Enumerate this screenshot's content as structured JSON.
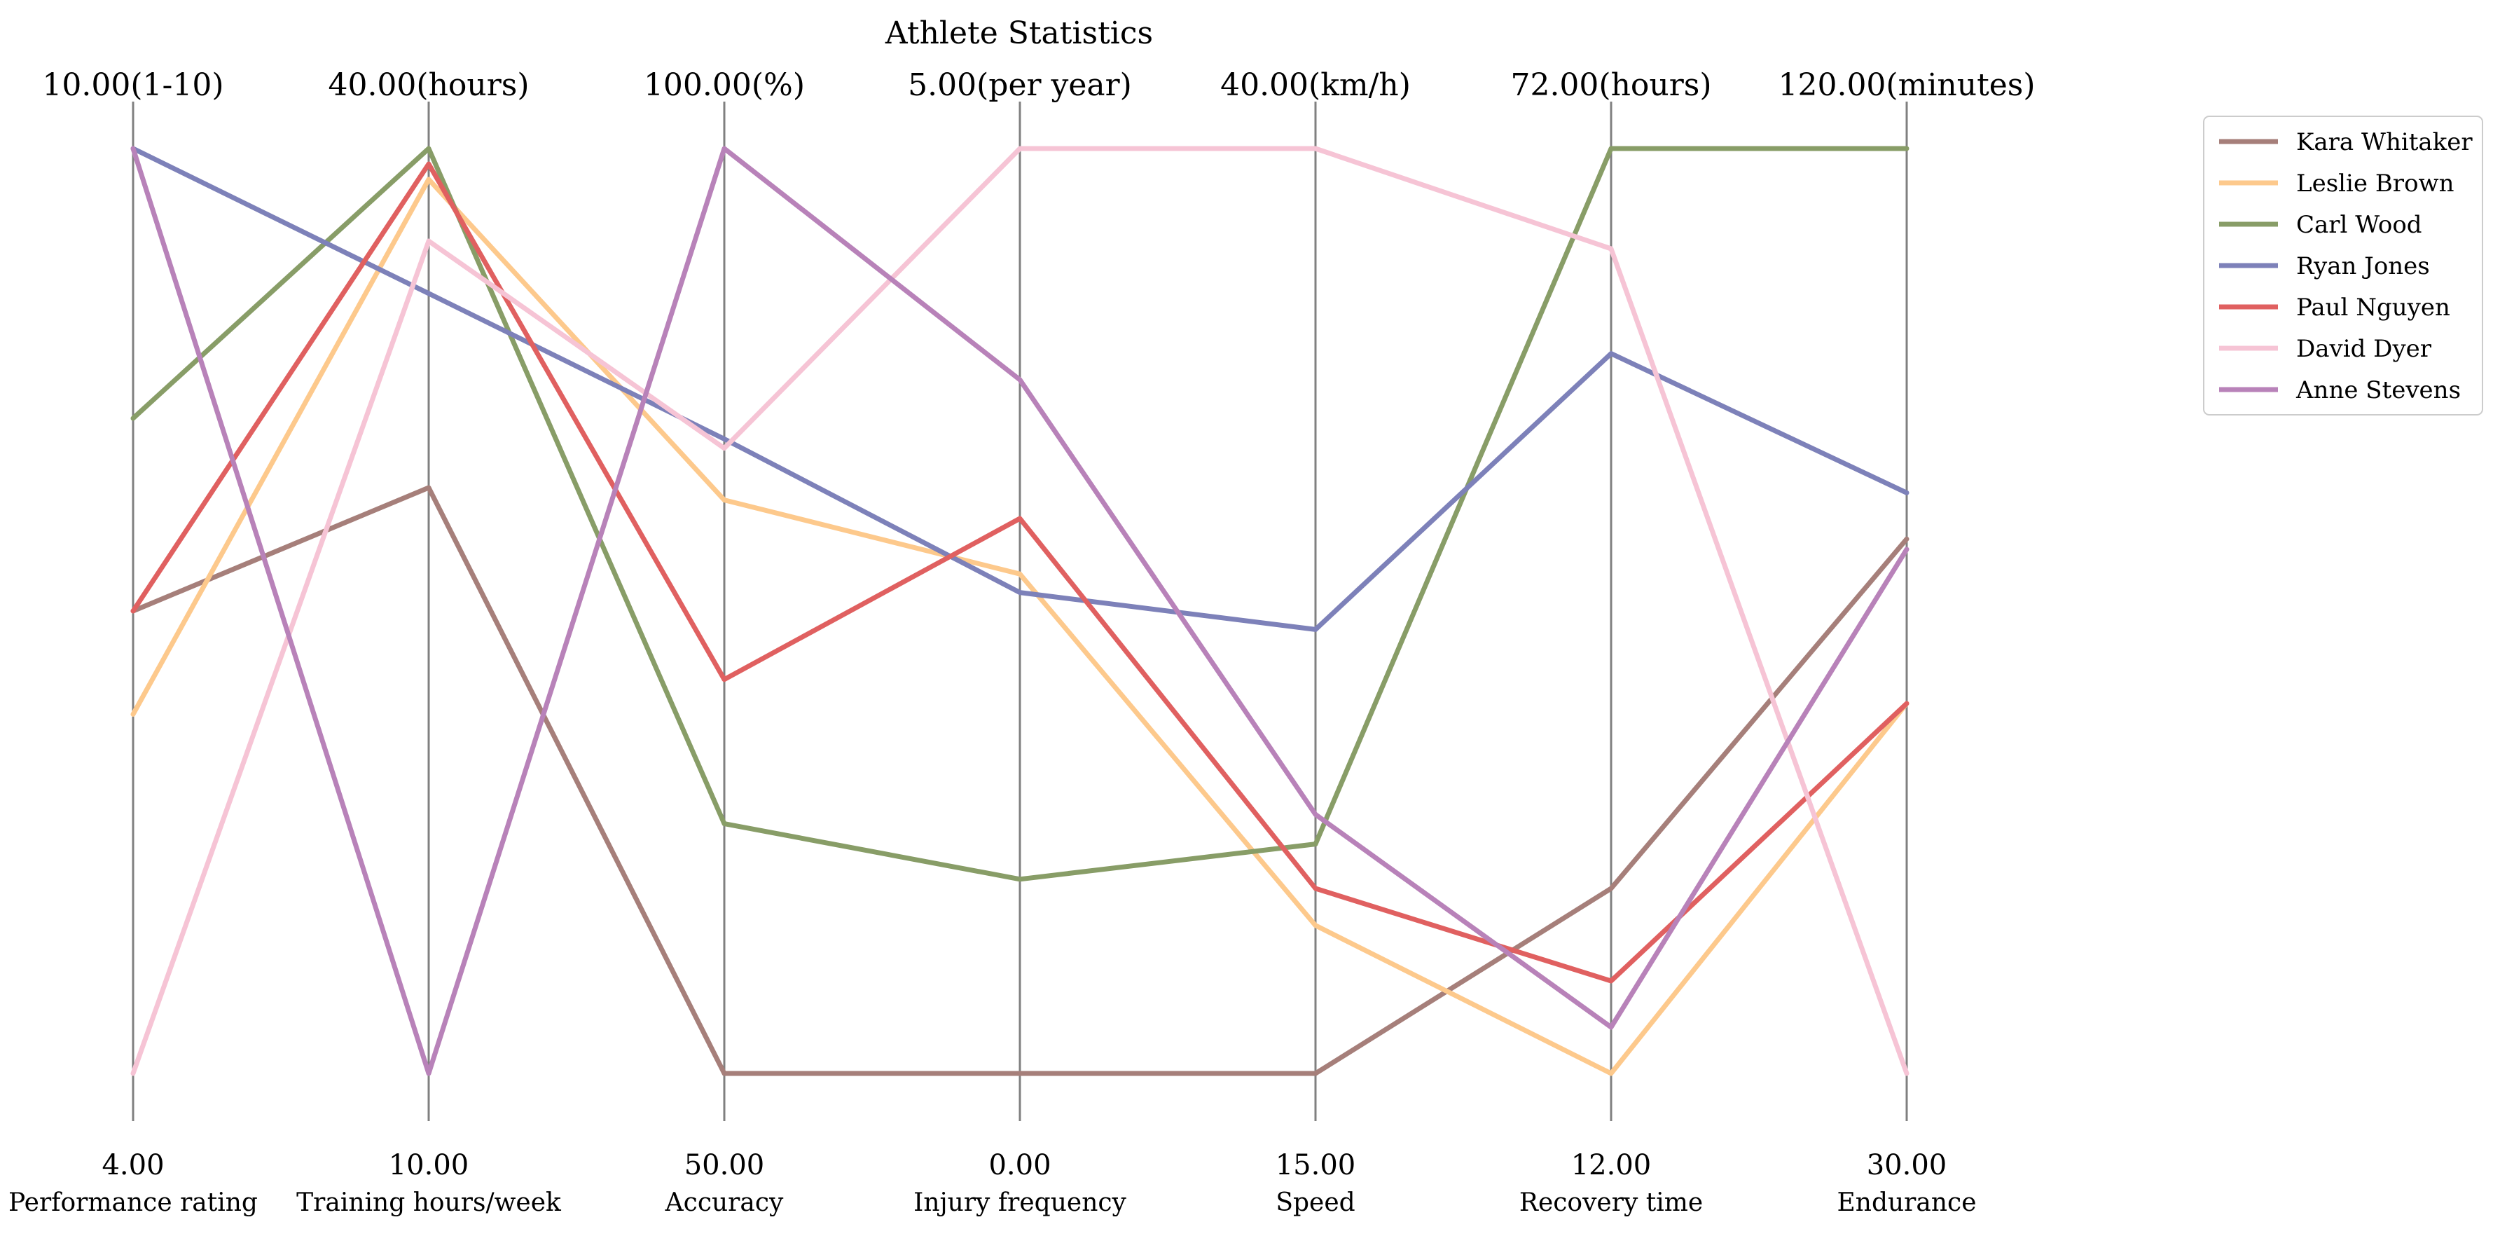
{
  "chart_data": {
    "type": "parallel_coordinates",
    "title": "Athlete Statistics",
    "axes": [
      {
        "name": "Performance rating",
        "min": 4,
        "max": 10,
        "min_label": "4.00",
        "max_label": "10.00(1-10)"
      },
      {
        "name": "Training hours/week",
        "min": 10,
        "max": 40,
        "min_label": "10.00",
        "max_label": "40.00(hours)"
      },
      {
        "name": "Accuracy",
        "min": 50,
        "max": 100,
        "min_label": "50.00",
        "max_label": "100.00(%)"
      },
      {
        "name": "Injury frequency",
        "min": 0,
        "max": 5,
        "min_label": "0.00",
        "max_label": "5.00(per year)"
      },
      {
        "name": "Speed",
        "min": 15,
        "max": 40,
        "min_label": "15.00",
        "max_label": "40.00(km/h)"
      },
      {
        "name": "Recovery time",
        "min": 12,
        "max": 72,
        "min_label": "12.00",
        "max_label": "72.00(hours)"
      },
      {
        "name": "Endurance",
        "min": 30,
        "max": 120,
        "min_label": "30.00",
        "max_label": "120.00(minutes)"
      }
    ],
    "series": [
      {
        "name": "Kara Whitaker",
        "color": "#a67f7a",
        "values": [
          7.0,
          29.0,
          50.0,
          0.0,
          15.0,
          24.0,
          82.0
        ]
      },
      {
        "name": "Leslie Brown",
        "color": "#fdc98c",
        "values": [
          6.33,
          39.0,
          81.0,
          2.7,
          19.0,
          12.0,
          66.0
        ]
      },
      {
        "name": "Carl Wood",
        "color": "#889d67",
        "values": [
          8.25,
          40.0,
          63.5,
          1.05,
          21.2,
          72.0,
          120.0
        ]
      },
      {
        "name": "Ryan Jones",
        "color": "#7d81b9",
        "values": [
          10.0,
          35.3,
          84.3,
          2.6,
          27.0,
          58.7,
          86.5
        ]
      },
      {
        "name": "Paul Nguyen",
        "color": "#e06060",
        "values": [
          7.0,
          39.5,
          71.3,
          3.0,
          20.0,
          18.0,
          66.0
        ]
      },
      {
        "name": "David Dyer",
        "color": "#f6c4d5",
        "values": [
          4.0,
          37.0,
          83.8,
          5.0,
          40.0,
          65.5,
          30.0
        ]
      },
      {
        "name": "Anne Stevens",
        "color": "#b882b9",
        "values": [
          10.0,
          10.0,
          100.0,
          3.75,
          22.0,
          15.0,
          81.0
        ]
      }
    ],
    "legend_position": "top-right"
  }
}
